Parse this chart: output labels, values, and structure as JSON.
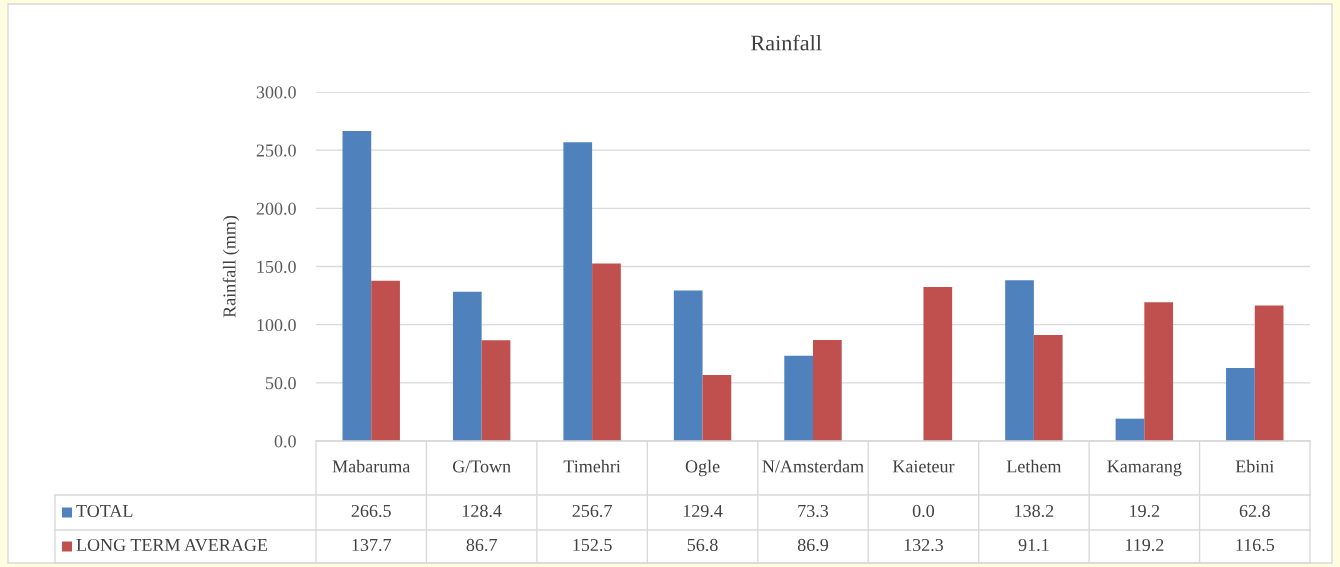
{
  "chart_data": {
    "type": "bar",
    "title": "Rainfall",
    "ylabel": "Rainfall (mm)",
    "categories": [
      "Mabaruma",
      "G/Town",
      "Timehri",
      "Ogle",
      "N/Amsterdam",
      "Kaieteur",
      "Lethem",
      "Kamarang",
      "Ebini"
    ],
    "series": [
      {
        "name": "TOTAL",
        "color": "#4f81bd",
        "values": [
          266.5,
          128.4,
          256.7,
          129.4,
          73.3,
          0.0,
          138.2,
          19.2,
          62.8
        ],
        "value_labels": [
          "266.5",
          "128.4",
          "256.7",
          "129.4",
          "73.3",
          "0.0",
          "138.2",
          "19.2",
          "62.8"
        ]
      },
      {
        "name": "LONG TERM AVERAGE",
        "color": "#c0504d",
        "values": [
          137.7,
          86.7,
          152.5,
          56.8,
          86.9,
          132.3,
          91.1,
          119.2,
          116.5
        ],
        "value_labels": [
          "137.7",
          "86.7",
          "152.5",
          "56.8",
          "86.9",
          "132.3",
          "91.1",
          "119.2",
          "116.5"
        ]
      }
    ],
    "ylim": [
      0,
      300
    ],
    "yticks": [
      {
        "value": 0,
        "label": "0.0"
      },
      {
        "value": 50,
        "label": "50.0"
      },
      {
        "value": 100,
        "label": "100.0"
      },
      {
        "value": 150,
        "label": "150.0"
      },
      {
        "value": 200,
        "label": "200.0"
      },
      {
        "value": 250,
        "label": "250.0"
      },
      {
        "value": 300,
        "label": "300.0"
      }
    ],
    "grid": "y",
    "legend": "bottom left"
  }
}
